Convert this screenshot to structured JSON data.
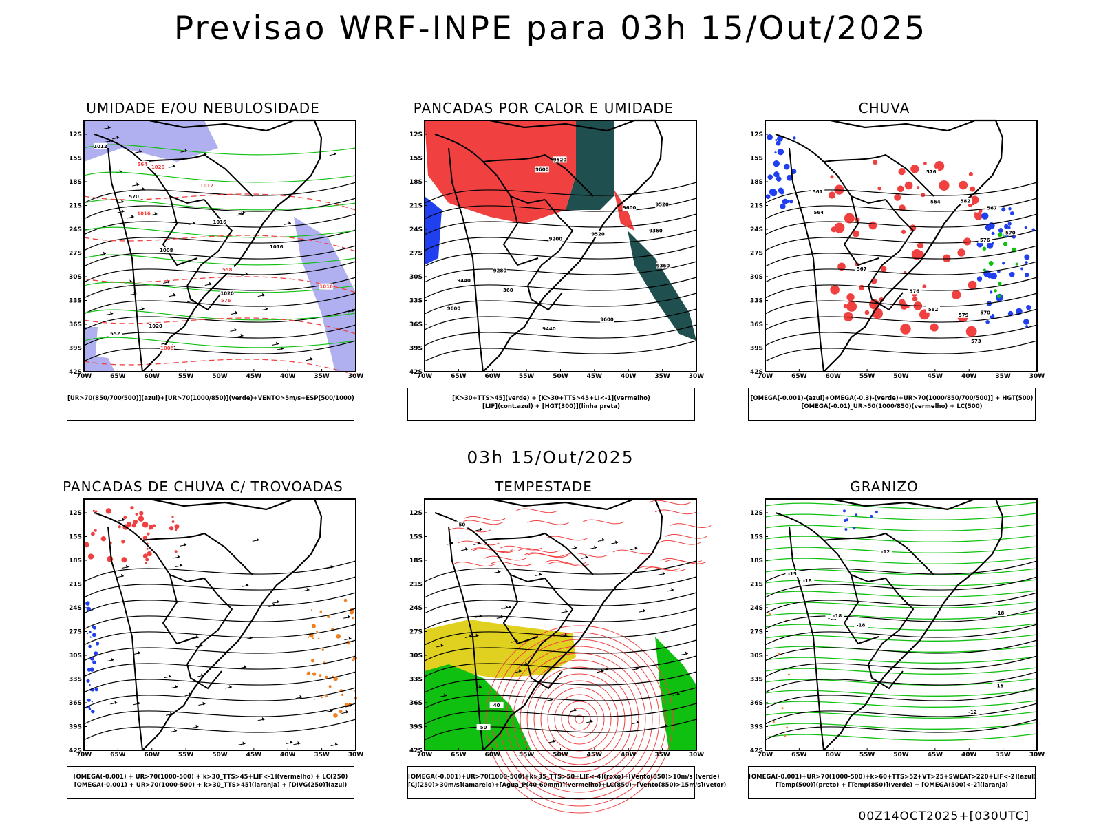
{
  "header": {
    "title": "Previsao WRF-INPE  para 03h 15/Out/2025"
  },
  "mid": {
    "title": "03h 15/Out/2025"
  },
  "footer": {
    "run": "00Z14OCT2025+[030UTC]"
  },
  "axes": {
    "lat_labels": [
      "12S",
      "15S",
      "18S",
      "21S",
      "24S",
      "27S",
      "30S",
      "33S",
      "36S",
      "39S",
      "42S"
    ],
    "lon_labels": [
      "70W",
      "65W",
      "60W",
      "55W",
      "50W",
      "45W",
      "40W",
      "35W",
      "30W"
    ]
  },
  "panels": [
    {
      "title": "UMIDADE E/OU NEBULOSIDADE",
      "legend": [
        "[UR>70(850/700/500)](azul)+[UR>70(1000/850)](verde)+VENTO>5m/s+ESP(500/1000)"
      ],
      "contour_labels": [
        "1012",
        "1016",
        "1016",
        "1012",
        "1020",
        "1020",
        "1016",
        "1016",
        "1008",
        "1008",
        "1020",
        "564",
        "570",
        "576",
        "552",
        "558"
      ]
    },
    {
      "title": "PANCADAS POR CALOR E UMIDADE",
      "legend": [
        "[K>30+TTS>45](verde) + [K>30+TTS>45+LI<-1](vermelho)",
        "[LIF](cont.azul) + [HGT(300)](linha preta)"
      ],
      "contour_labels": [
        "9600",
        "9600",
        "9600",
        "9600",
        "9520",
        "9520",
        "9520",
        "9440",
        "9440",
        "9360",
        "9360",
        "9280",
        "9200",
        "360"
      ]
    },
    {
      "title": "CHUVA",
      "legend": [
        "[OMEGA(-0.001)-(azul)+OMEGA(-0.3)-(verde)+UR>70(1000/850/700/500)] + HGT(500)",
        "[OMEGA(-0.01)_UR>50(1000/850)(vermelho) + LC(500)"
      ],
      "contour_labels": [
        "582",
        "579",
        "576",
        "576",
        "573",
        "570",
        "567",
        "564",
        "561",
        "582",
        "576",
        "570",
        "567",
        "564"
      ]
    },
    {
      "title": "PANCADAS DE CHUVA C/ TROVOADAS",
      "legend": [
        "[OMEGA(-0.001) + UR>70(1000-500) + k>30_TTS>45+LIF<-1](vermelho) + LC(250)",
        "[OMEGA(-0.001) + UR>70(1000-500) + k>30_TTS>45](laranja) + [DIVG(250)](azul)"
      ],
      "contour_labels": []
    },
    {
      "title": "TEMPESTADE",
      "legend": [
        "[OMEGA(-0.001)+UR>70(1000-500)+k>35_TTS>50+LIF<-4](roxo)+[Vento(850)>10m/s](verde)",
        "[CJ(250)>30m/s](amarelo)+[Agua_P(40-60mm)](vermelho)+LC(850)+[Vento(850)>15m/s](vetor)"
      ],
      "contour_labels": [
        "50",
        "50",
        "40"
      ]
    },
    {
      "title": "GRANIZO",
      "legend": [
        "[OMEGA(-0.001)+UR>70(1000-500)+k>60+TTS>52+VT>25+SWEAT>220+LIF<-2](azul)",
        "[Temp(500)](preto) + [Temp(850)](verde) + [OMEGA(500)<-2](laranja)"
      ],
      "contour_labels": [
        "-12",
        "-15",
        "-18",
        "-18",
        "-15",
        "-12",
        "-15",
        "-18",
        "-18"
      ]
    }
  ],
  "colors": {
    "blue_shade": "#b0b0f0",
    "green": "#10c010",
    "red": "#f04040",
    "dark_teal": "#1f4f4f",
    "blue": "#2040f0",
    "orange": "#f08020",
    "yellow": "#e0d020",
    "green_fill": "#10c010"
  }
}
